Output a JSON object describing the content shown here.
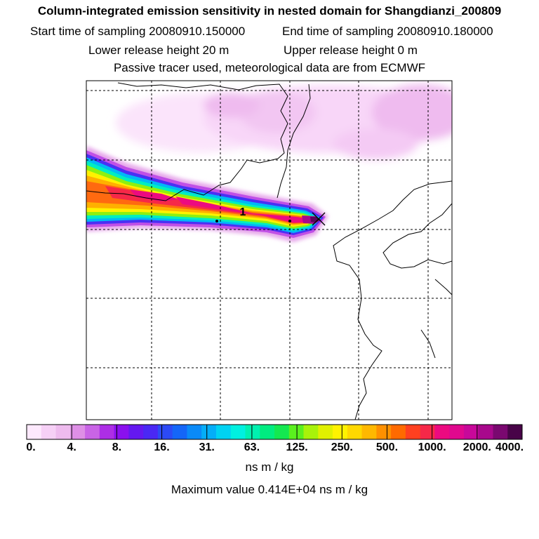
{
  "header": {
    "title": "Column-integrated emission sensitivity in nested domain for Shangdianzi_200809",
    "start_label": "Start time of sampling 20080910.150000",
    "end_label": "End time of sampling 20080910.180000",
    "lower_label": "Lower release height   20 m",
    "upper_label": "Upper release height    0 m",
    "note": "Passive tracer used, meteorological data are from ECMWF"
  },
  "colors": {
    "scale": [
      "#fde9fd",
      "#f6d0f6",
      "#eebbee",
      "#de8fe6",
      "#c964e6",
      "#ad2ee6",
      "#8a10ee",
      "#6418f0",
      "#4a28f4",
      "#2c4af6",
      "#1466f8",
      "#0a8af8",
      "#04aef8",
      "#00d2f2",
      "#00f0e0",
      "#00f0b0",
      "#00ec80",
      "#14e850",
      "#5af01e",
      "#a8f20a",
      "#e0f000",
      "#fff200",
      "#ffd800",
      "#ffb800",
      "#ff9000",
      "#ff6a00",
      "#ff4020",
      "#f62848",
      "#ec0a80",
      "#e0088e",
      "#c8089a",
      "#a8088c",
      "#7a0870",
      "#480448"
    ]
  },
  "chart_data": {
    "type": "heatmap",
    "title": "Column-integrated emission sensitivity in nested domain for Shangdianzi_200809",
    "unit_label": "ns m / kg",
    "colorbar_ticks": [
      "0.",
      "4.",
      "8.",
      "16.",
      "31.",
      "63.",
      "125.",
      "250.",
      "500.",
      "1000.",
      "2000.",
      "4000."
    ],
    "max_value_label": "Maximum value  0.414E+04 ns m / kg",
    "plume_label": "1",
    "receptor": "Shangdianzi",
    "grid": true
  }
}
